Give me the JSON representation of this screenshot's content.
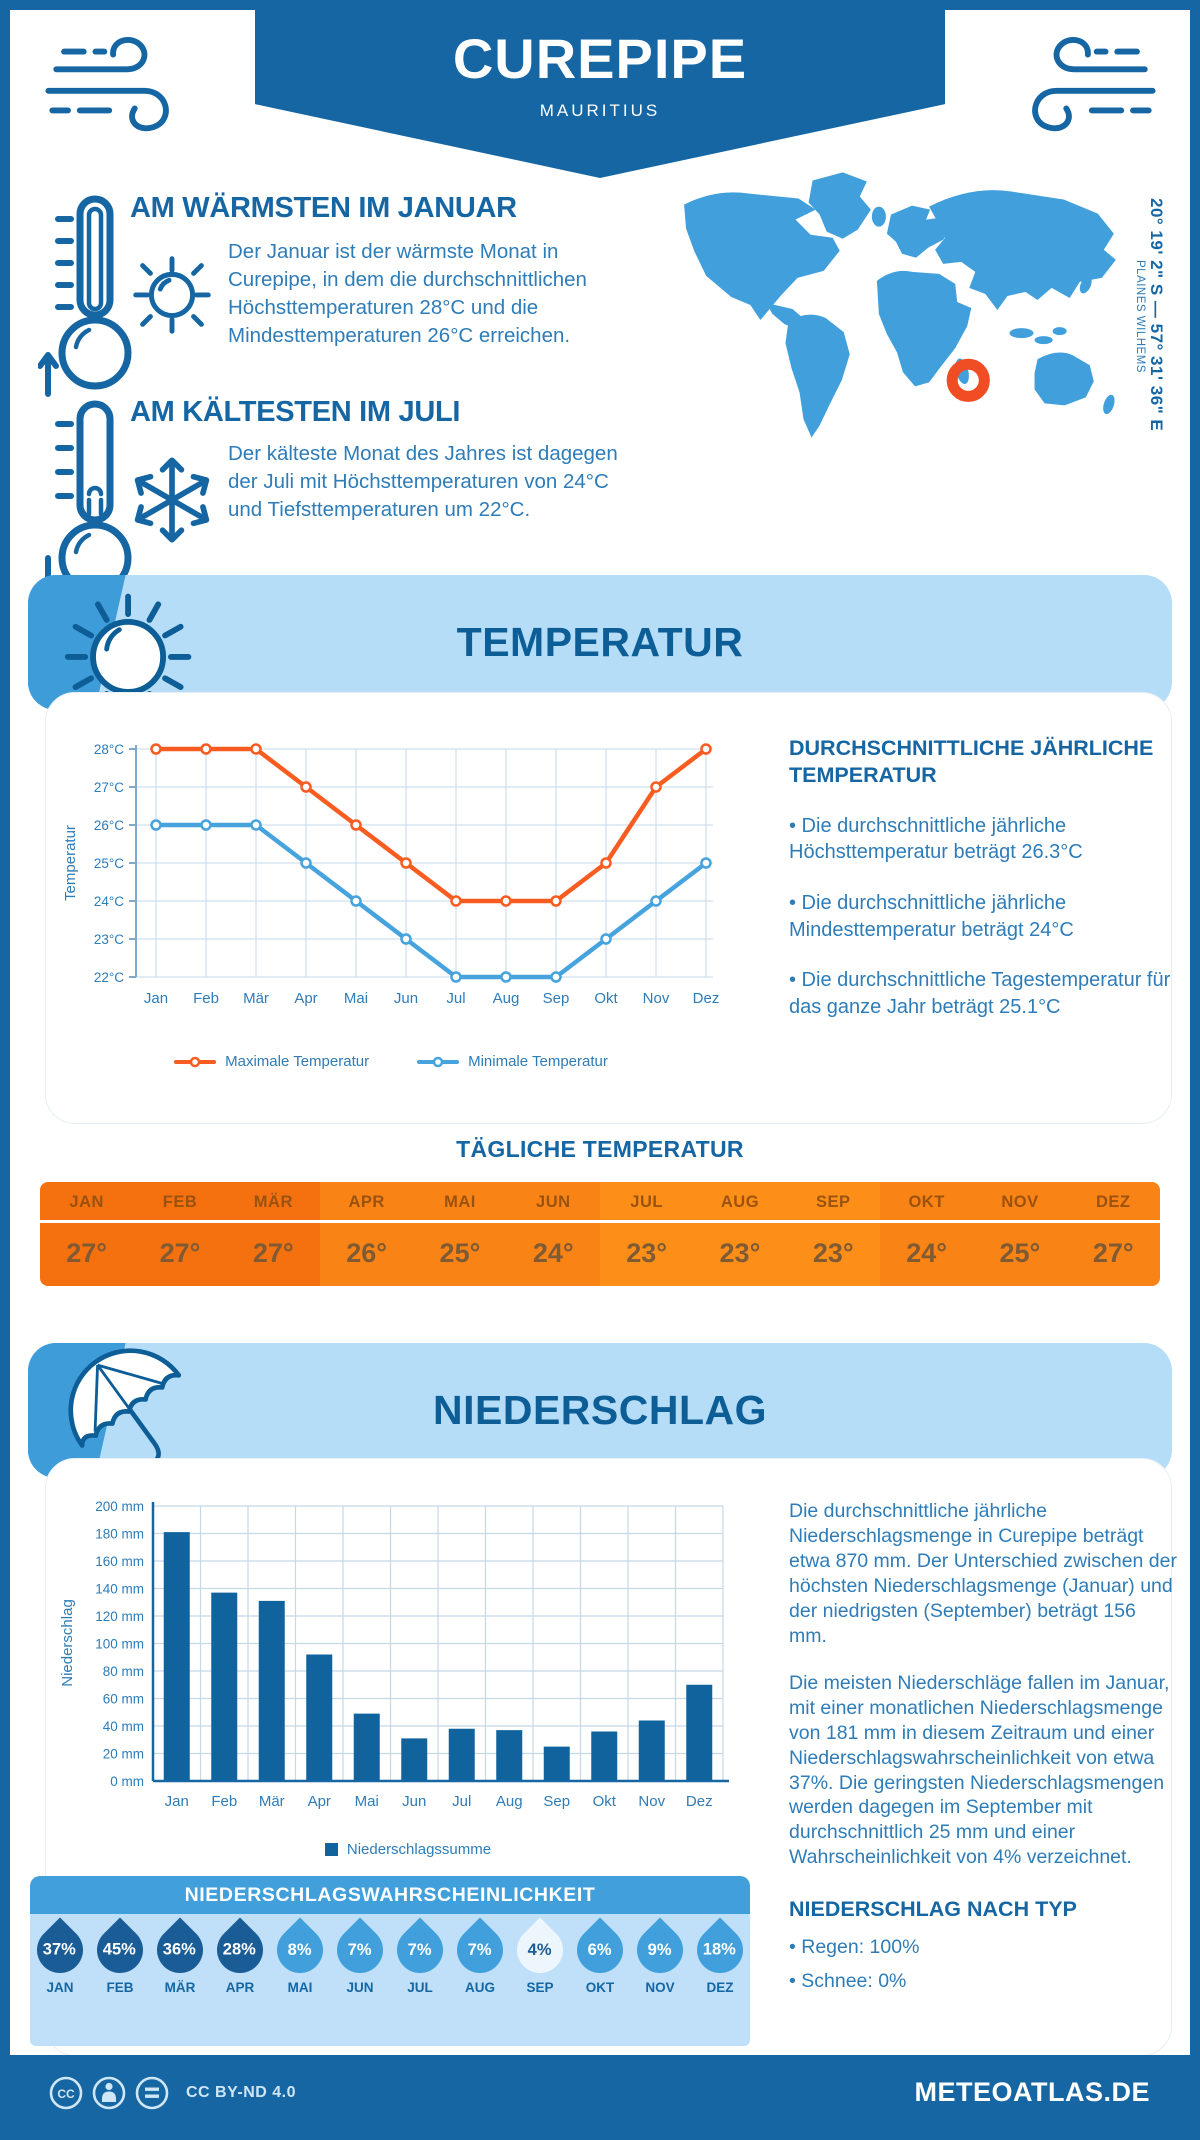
{
  "header": {
    "title": "CUREPIPE",
    "subtitle": "MAURITIUS"
  },
  "location": {
    "coordinates": "20° 19' 2\" S — 57° 31' 36\" E",
    "region": "PLAINES WILHEMS"
  },
  "highlights": {
    "warmest": {
      "title": "AM WÄRMSTEN IM JANUAR",
      "text": "Der Januar ist der wärmste Monat in Curepipe, in dem die durchschnittlichen Höchsttemperaturen 28°C und die Mindesttemperaturen 26°C erreichen."
    },
    "coldest": {
      "title": "AM KÄLTESTEN IM JULI",
      "text": "Der kälteste Monat des Jahres ist dagegen der Juli mit Höchsttemperaturen von 24°C und Tiefsttemperaturen um 22°C."
    }
  },
  "temperature": {
    "section_title": "TEMPERATUR",
    "summary_title": "DURCHSCHNITTLICHE JÄHRLICHE TEMPERATUR",
    "bullets": [
      "• Die durchschnittliche jährliche Höchsttemperatur beträgt 26.3°C",
      "• Die durchschnittliche jährliche Mindesttemperatur beträgt 24°C",
      "• Die durchschnittliche Tagestemperatur für das ganze Jahr beträgt 25.1°C"
    ],
    "daily_title": "TÄGLICHE TEMPERATUR"
  },
  "precipitation": {
    "section_title": "NIEDERSCHLAG",
    "legend": "Niederschlagssumme",
    "paragraph1": "Die durchschnittliche jährliche Niederschlagsmenge in Curepipe beträgt etwa 870 mm. Der Unterschied zwischen der höchsten Niederschlagsmenge (Januar) und der niedrigsten (September) beträgt 156 mm.",
    "paragraph2": "Die meisten Niederschläge fallen im Januar, mit einer monatlichen Niederschlagsmenge von 181 mm in diesem Zeitraum und einer Niederschlagswahrscheinlichkeit von etwa 37%. Die geringsten Niederschlagsmengen werden dagegen im September mit durchschnittlich 25 mm und einer Wahrscheinlichkeit von 4% verzeichnet.",
    "type_title": "NIEDERSCHLAG NACH TYP",
    "type_bullets": [
      "• Regen: 100%",
      "• Schnee: 0%"
    ],
    "probability_title": "NIEDERSCHLAGSWAHRSCHEINLICHKEIT"
  },
  "footer": {
    "license": "CC BY-ND 4.0",
    "site": "METEOATLAS.DE"
  },
  "colors": {
    "primary_blue": "#1566a3",
    "light_blue_banner": "#b6ddf8",
    "wedge_blue": "#3e9cd9",
    "body_text_blue": "#2e7cb8",
    "map_blue": "#41a0dc",
    "marker_orange": "#f14d24",
    "max_line_orange": "#f85c21",
    "min_line_blue": "#47a3dd",
    "bar_blue": "#11639e"
  },
  "chart_data": [
    {
      "type": "line",
      "title": "Monatliche Höchst- und Mindesttemperaturen",
      "x": [
        "Jan",
        "Feb",
        "Mär",
        "Apr",
        "Mai",
        "Jun",
        "Jul",
        "Aug",
        "Sep",
        "Okt",
        "Nov",
        "Dez"
      ],
      "ylabel": "Temperatur",
      "ylim": [
        22,
        28
      ],
      "ytick_suffix": "°C",
      "grid": true,
      "legend_position": "bottom",
      "series": [
        {
          "name": "Maximale Temperatur",
          "color": "#f85c21",
          "values": [
            28,
            28,
            28,
            27,
            26,
            25,
            24,
            24,
            24,
            25,
            27,
            28
          ]
        },
        {
          "name": "Minimale Temperatur",
          "color": "#47a3dd",
          "values": [
            26,
            26,
            26,
            25,
            24,
            23,
            22,
            22,
            22,
            23,
            24,
            25
          ]
        }
      ]
    },
    {
      "type": "bar",
      "title": "Niederschlagssumme",
      "categories": [
        "Jan",
        "Feb",
        "Mär",
        "Apr",
        "Mai",
        "Jun",
        "Jul",
        "Aug",
        "Sep",
        "Okt",
        "Nov",
        "Dez"
      ],
      "values": [
        181,
        137,
        131,
        92,
        49,
        31,
        38,
        37,
        25,
        36,
        44,
        70
      ],
      "ylabel": "Niederschlag",
      "ylim": [
        0,
        200
      ],
      "ytick_step": 20,
      "ytick_suffix": " mm",
      "bar_color": "#11639e",
      "grid": true,
      "legend": "Niederschlagssumme"
    },
    {
      "type": "table",
      "title": "TÄGLICHE TEMPERATUR",
      "columns": [
        "JAN",
        "FEB",
        "MÄR",
        "APR",
        "MAI",
        "JUN",
        "JUL",
        "AUG",
        "SEP",
        "OKT",
        "NOV",
        "DEZ"
      ],
      "values": [
        "27°",
        "27°",
        "27°",
        "26°",
        "25°",
        "24°",
        "23°",
        "23°",
        "23°",
        "24°",
        "25°",
        "27°"
      ],
      "column_colors": [
        "#f57110",
        "#fa8315",
        "#fd8f19",
        "#fa8315"
      ]
    },
    {
      "type": "bar",
      "title": "NIEDERSCHLAGSWAHRSCHEINLICHKEIT",
      "unit": "%",
      "categories": [
        "JAN",
        "FEB",
        "MÄR",
        "APR",
        "MAI",
        "JUN",
        "JUL",
        "AUG",
        "SEP",
        "OKT",
        "NOV",
        "DEZ"
      ],
      "values": [
        37,
        45,
        36,
        28,
        8,
        7,
        7,
        7,
        4,
        6,
        9,
        18
      ],
      "tones": [
        "dark",
        "dark",
        "dark",
        "dark",
        "medium",
        "medium",
        "medium",
        "medium",
        "pale",
        "medium",
        "medium",
        "medium"
      ]
    }
  ]
}
